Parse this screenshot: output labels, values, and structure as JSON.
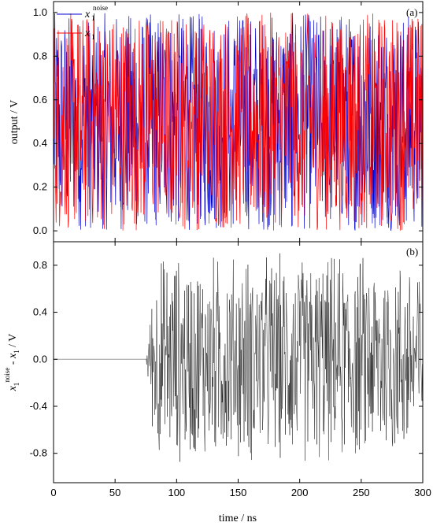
{
  "chart_data": [
    {
      "type": "line",
      "panel_label": "(a)",
      "ylabel": "output / V",
      "xlim": [
        0,
        300
      ],
      "ylim": [
        -0.05,
        1.05
      ],
      "xticks": [
        0,
        50,
        100,
        150,
        200,
        250,
        300
      ],
      "yticks": [
        "0.0",
        "0.2",
        "0.4",
        "0.6",
        "0.8",
        "1.0"
      ],
      "ytick_values": [
        0.0,
        0.2,
        0.4,
        0.6,
        0.8,
        1.0
      ],
      "series": [
        {
          "name": "x1 noise",
          "legend_main": "x",
          "legend_sub": "1",
          "legend_sup": "noise",
          "color": "#0000cc",
          "x_range": [
            0,
            300
          ],
          "y_range": [
            0.0,
            1.0
          ]
        },
        {
          "name": "x1",
          "legend_main": "x",
          "legend_sub": "1",
          "color": "#ff0000",
          "x_range": [
            0,
            300
          ],
          "y_range": [
            0.0,
            1.0
          ]
        }
      ]
    },
    {
      "type": "line",
      "panel_label": "(b)",
      "ylabel_parts": {
        "main1": "x",
        "sub1": "1",
        "sup1": "noise",
        "mid": " - ",
        "main2": "x",
        "sub2": "1",
        "unit": " / V"
      },
      "xlabel": "time / ns",
      "xlim": [
        0,
        300
      ],
      "ylim": [
        -1.05,
        1.0
      ],
      "xticks": [
        0,
        50,
        100,
        150,
        200,
        250,
        300
      ],
      "yticks": [
        "-0.8",
        "-0.4",
        "0.0",
        "0.4",
        "0.8"
      ],
      "ytick_values": [
        -0.8,
        -0.4,
        0.0,
        0.4,
        0.8
      ],
      "series": [
        {
          "name": "x1 noise - x1",
          "color": "#000000",
          "zero_until": 75,
          "y_range": [
            -0.97,
            0.97
          ]
        }
      ]
    }
  ],
  "colors": {
    "blue": "#0000cc",
    "red": "#ff0000",
    "black": "#000000",
    "zero_line": "#999999"
  }
}
